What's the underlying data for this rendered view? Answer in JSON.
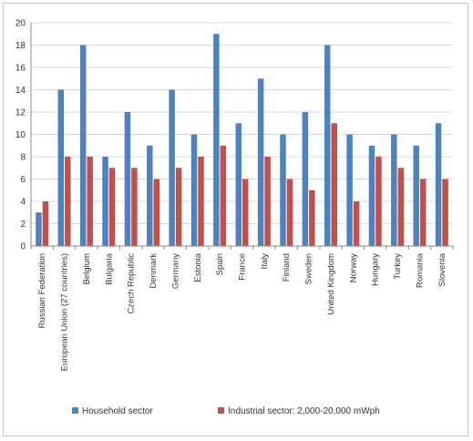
{
  "chart_data": {
    "type": "bar",
    "categories": [
      "Russian Federation",
      "European Union (27 countries)",
      "Belgium",
      "Bulgaria",
      "Czech Republic",
      "Denmark",
      "Germany",
      "Estonia",
      "Spain",
      "France",
      "Italy",
      "Finland",
      "Sweden",
      "United Kingdom",
      "Norway",
      "Hungary",
      "Turkey",
      "Romania",
      "Slovenia"
    ],
    "series": [
      {
        "name": "Household sector",
        "color": "#4f81bd",
        "values": [
          3,
          14,
          18,
          8,
          12,
          9,
          14,
          10,
          19,
          11,
          15,
          10,
          12,
          18,
          10,
          9,
          10,
          9,
          11
        ]
      },
      {
        "name": "Industrial sector: 2,000-20,000 mWph",
        "color": "#c0504d",
        "values": [
          4,
          8,
          8,
          7,
          7,
          6,
          7,
          8,
          9,
          6,
          8,
          6,
          5,
          11,
          4,
          8,
          7,
          6,
          6
        ]
      }
    ],
    "yticks": [
      "0",
      "2",
      "4",
      "6",
      "8",
      "10",
      "12",
      "14",
      "16",
      "18",
      "20"
    ],
    "ylim": [
      0,
      20
    ],
    "grid": true,
    "legend_position": "bottom"
  }
}
